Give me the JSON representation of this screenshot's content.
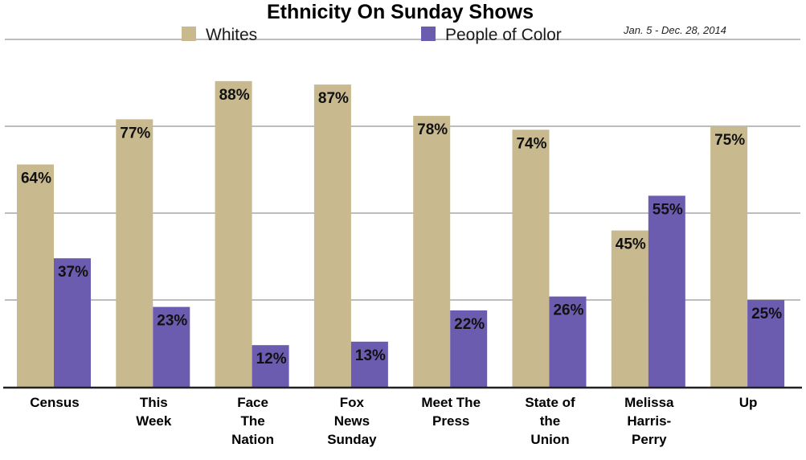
{
  "chart_data": {
    "type": "bar",
    "title": "Ethnicity On Sunday Shows",
    "subtitle": "Jan. 5 - Dec. 28, 2014",
    "categories": [
      [
        "Census"
      ],
      [
        "This",
        "Week"
      ],
      [
        "Face",
        "The",
        "Nation"
      ],
      [
        "Fox",
        "News",
        "Sunday"
      ],
      [
        "Meet The",
        "Press"
      ],
      [
        "State of",
        "the",
        "Union"
      ],
      [
        "Melissa",
        "Harris-",
        "Perry"
      ],
      [
        "Up"
      ]
    ],
    "series": [
      {
        "name": "Whites",
        "color": "#c8b98f",
        "values": [
          64,
          77,
          88,
          87,
          78,
          74,
          45,
          75
        ]
      },
      {
        "name": "People of Color",
        "color": "#6c5cb0",
        "values": [
          37,
          23,
          12,
          13,
          22,
          26,
          55,
          25
        ]
      }
    ],
    "value_suffix": "%",
    "ylim": [
      0,
      100
    ],
    "grid": true,
    "legend": "top",
    "xlabel": "",
    "ylabel": ""
  }
}
